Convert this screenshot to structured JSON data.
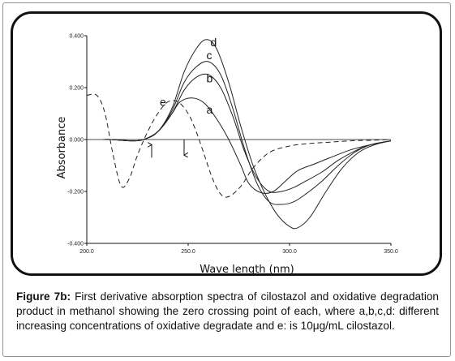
{
  "caption": {
    "label": "Figure 7b:",
    "text": " First derivative absorption spectra of cilostazol and oxidative degradation product in methanol showing the zero crossing point of each, where a,b,c,d: different increasing concentrations of oxidative degradate and e: is 10μg/mL cilostazol."
  },
  "chart_data": {
    "type": "line",
    "xlabel": "Wave length (nm)",
    "ylabel": "Absorbance",
    "xlim": [
      200,
      350
    ],
    "ylim": [
      -0.4,
      0.4
    ],
    "x_ticks": [
      {
        "value": 200,
        "label": "200.0"
      },
      {
        "value": 250,
        "label": "250.0"
      },
      {
        "value": 300,
        "label": "300.0"
      },
      {
        "value": 350,
        "label": "350.0"
      }
    ],
    "y_ticks": [
      {
        "value": 0.4,
        "label": "0.400"
      },
      {
        "value": 0.2,
        "label": "0.200"
      },
      {
        "value": 0.0,
        "label": "0.000"
      },
      {
        "value": -0.2,
        "label": "-0.200"
      },
      {
        "value": -0.4,
        "label": "-0.400"
      }
    ],
    "grid": false,
    "series": [
      {
        "name": "a",
        "style": "solid",
        "x": [
          208,
          212,
          222,
          228,
          235,
          242,
          246,
          252,
          258,
          264,
          270,
          276,
          280,
          286,
          292,
          298,
          304,
          312,
          320,
          330,
          340,
          350
        ],
        "y": [
          0.0,
          0.0,
          -0.005,
          0.0,
          0.03,
          0.1,
          0.145,
          0.16,
          0.14,
          0.08,
          0.0,
          -0.1,
          -0.17,
          -0.205,
          -0.2,
          -0.16,
          -0.12,
          -0.095,
          -0.07,
          -0.04,
          -0.02,
          -0.005
        ]
      },
      {
        "name": "b",
        "style": "solid",
        "x": [
          208,
          212,
          222,
          228,
          235,
          242,
          248,
          254,
          260,
          266,
          272,
          278,
          284,
          290,
          296,
          302,
          308,
          316,
          324,
          332,
          340,
          350
        ],
        "y": [
          0.0,
          0.0,
          -0.005,
          0.0,
          0.03,
          0.1,
          0.19,
          0.24,
          0.25,
          0.2,
          0.09,
          -0.05,
          -0.15,
          -0.2,
          -0.2,
          -0.185,
          -0.16,
          -0.125,
          -0.08,
          -0.045,
          -0.02,
          -0.005
        ]
      },
      {
        "name": "c",
        "style": "solid",
        "x": [
          208,
          212,
          222,
          228,
          235,
          242,
          248,
          254,
          260,
          266,
          272,
          278,
          284,
          290,
          296,
          302,
          308,
          316,
          324,
          332,
          340,
          350
        ],
        "y": [
          0.0,
          0.0,
          -0.005,
          0.0,
          0.03,
          0.11,
          0.22,
          0.28,
          0.3,
          0.25,
          0.12,
          -0.04,
          -0.17,
          -0.24,
          -0.25,
          -0.24,
          -0.21,
          -0.16,
          -0.1,
          -0.05,
          -0.02,
          -0.005
        ]
      },
      {
        "name": "d",
        "style": "solid",
        "x": [
          208,
          212,
          222,
          228,
          235,
          242,
          248,
          254,
          259,
          264,
          270,
          276,
          282,
          288,
          294,
          300,
          304,
          310,
          318,
          326,
          334,
          342,
          350
        ],
        "y": [
          0.0,
          0.0,
          -0.005,
          0.0,
          0.03,
          0.12,
          0.26,
          0.35,
          0.385,
          0.35,
          0.22,
          0.05,
          -0.1,
          -0.21,
          -0.29,
          -0.335,
          -0.34,
          -0.3,
          -0.2,
          -0.11,
          -0.05,
          -0.02,
          -0.005
        ]
      },
      {
        "name": "e",
        "style": "dashed",
        "x": [
          200,
          205,
          209,
          213,
          217,
          221,
          225,
          230,
          235,
          240,
          245,
          250,
          254,
          258,
          262,
          266,
          270,
          276,
          282,
          290,
          300,
          310,
          320,
          330,
          340,
          350
        ],
        "y": [
          0.17,
          0.17,
          0.1,
          -0.06,
          -0.18,
          -0.15,
          -0.06,
          0.03,
          0.1,
          0.145,
          0.145,
          0.1,
          0.03,
          -0.06,
          -0.15,
          -0.21,
          -0.22,
          -0.18,
          -0.11,
          -0.05,
          -0.025,
          -0.015,
          -0.01,
          -0.005,
          -0.003,
          0.0
        ]
      }
    ],
    "annotations": [
      {
        "text": "a",
        "x": 259,
        "y": 0.1
      },
      {
        "text": "b",
        "x": 259,
        "y": 0.22
      },
      {
        "text": "c",
        "x": 259,
        "y": 0.31
      },
      {
        "text": "d",
        "x": 261,
        "y": 0.36
      },
      {
        "text": "e",
        "x": 236,
        "y": 0.13
      }
    ],
    "arrows": [
      {
        "x": 232,
        "y_from": -0.07,
        "y_to": -0.02
      },
      {
        "x": 248,
        "y_from": 0.0,
        "y_to": -0.06
      }
    ]
  }
}
